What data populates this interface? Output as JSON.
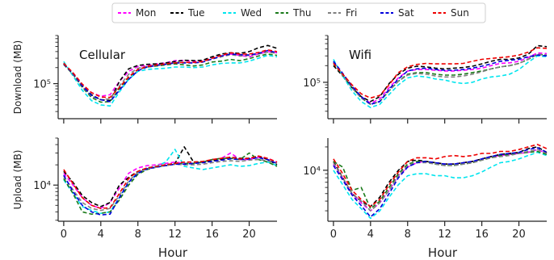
{
  "chart_data": {
    "type": "line",
    "legend_position": "top-center",
    "x": [
      0,
      1,
      2,
      3,
      4,
      5,
      6,
      7,
      8,
      9,
      10,
      11,
      12,
      13,
      14,
      15,
      16,
      17,
      18,
      19,
      20,
      21,
      22,
      23
    ],
    "xticks": [
      0,
      4,
      8,
      12,
      16,
      20
    ],
    "xlabel": "Hour",
    "series_styles": [
      {
        "name": "Mon",
        "color": "#ff00ff"
      },
      {
        "name": "Tue",
        "color": "#000000"
      },
      {
        "name": "Wed",
        "color": "#00e5ee"
      },
      {
        "name": "Thu",
        "color": "#1a7a1a"
      },
      {
        "name": "Fri",
        "color": "#808080"
      },
      {
        "name": "Sat",
        "color": "#0000dd"
      },
      {
        "name": "Sun",
        "color": "#ee0000"
      }
    ],
    "panels": [
      {
        "id": "cell-download",
        "title": "Cellular",
        "ylabel": "Download (MB)",
        "yscale": "log",
        "ylim": [
          22000,
          800000
        ],
        "yticks": [
          {
            "value": 100000,
            "label": "10⁵"
          }
        ],
        "series": [
          {
            "name": "Mon",
            "values": [
              240000,
              155000,
              95000,
              68000,
              58000,
              62000,
              110000,
              170000,
              210000,
              220000,
              235000,
              245000,
              270000,
              270000,
              265000,
              265000,
              300000,
              340000,
              360000,
              340000,
              320000,
              360000,
              400000,
              380000
            ]
          },
          {
            "name": "Tue",
            "values": [
              230000,
              150000,
              90000,
              62000,
              50000,
              48000,
              110000,
              190000,
              220000,
              230000,
              235000,
              245000,
              260000,
              275000,
              270000,
              275000,
              320000,
              360000,
              380000,
              370000,
              400000,
              470000,
              520000,
              460000
            ]
          },
          {
            "name": "Wed",
            "values": [
              260000,
              140000,
              75000,
              48000,
              40000,
              38000,
              70000,
              120000,
              170000,
              185000,
              190000,
              195000,
              205000,
              205000,
              200000,
              205000,
              225000,
              240000,
              245000,
              245000,
              265000,
              300000,
              340000,
              320000
            ]
          },
          {
            "name": "Thu",
            "values": [
              235000,
              150000,
              85000,
              55000,
              45000,
              46000,
              80000,
              130000,
              185000,
              205000,
              215000,
              225000,
              235000,
              225000,
              215000,
              225000,
              255000,
              265000,
              285000,
              270000,
              295000,
              330000,
              360000,
              340000
            ]
          },
          {
            "name": "Fri",
            "values": [
              245000,
              150000,
              88000,
              58000,
              50000,
              52000,
              90000,
              150000,
              195000,
              210000,
              225000,
              235000,
              250000,
              250000,
              245000,
              255000,
              290000,
              320000,
              350000,
              330000,
              340000,
              360000,
              390000,
              370000
            ]
          },
          {
            "name": "Sat",
            "values": [
              235000,
              155000,
              90000,
              60000,
              50000,
              46000,
              75000,
              120000,
              175000,
              205000,
              220000,
              230000,
              245000,
              245000,
              245000,
              255000,
              290000,
              330000,
              360000,
              350000,
              345000,
              370000,
              420000,
              380000
            ]
          },
          {
            "name": "Sun",
            "values": [
              240000,
              160000,
              98000,
              68000,
              56000,
              55000,
              85000,
              135000,
              185000,
              210000,
              225000,
              235000,
              245000,
              250000,
              250000,
              260000,
              300000,
              340000,
              380000,
              360000,
              360000,
              385000,
              430000,
              400000
            ]
          }
        ]
      },
      {
        "id": "wifi-download",
        "title": "Wifi",
        "ylabel": "",
        "yscale": "log",
        "ylim": [
          22000,
          700000
        ],
        "yticks": [
          {
            "value": 100000,
            "label": "10⁵"
          }
        ],
        "series": [
          {
            "name": "Mon",
            "values": [
              230000,
              140000,
              85000,
              55000,
              42000,
              50000,
              80000,
              120000,
              160000,
              170000,
              170000,
              165000,
              160000,
              160000,
              165000,
              170000,
              180000,
              200000,
              220000,
              225000,
              240000,
              280000,
              340000,
              330000
            ]
          },
          {
            "name": "Tue",
            "values": [
              200000,
              130000,
              80000,
              55000,
              45000,
              55000,
              95000,
              140000,
              180000,
              195000,
              190000,
              180000,
              175000,
              180000,
              185000,
              195000,
              215000,
              240000,
              260000,
              260000,
              275000,
              320000,
              460000,
              440000
            ]
          },
          {
            "name": "Wed",
            "values": [
              260000,
              130000,
              70000,
              45000,
              35000,
              40000,
              60000,
              90000,
              120000,
              130000,
              125000,
              115000,
              110000,
              100000,
              95000,
              100000,
              115000,
              125000,
              130000,
              140000,
              170000,
              230000,
              300000,
              290000
            ]
          },
          {
            "name": "Thu",
            "values": [
              220000,
              135000,
              80000,
              52000,
              40000,
              45000,
              70000,
              105000,
              140000,
              150000,
              150000,
              140000,
              135000,
              135000,
              140000,
              150000,
              160000,
              175000,
              190000,
              200000,
              220000,
              260000,
              320000,
              310000
            ]
          },
          {
            "name": "Fri",
            "values": [
              230000,
              135000,
              80000,
              52000,
              40000,
              45000,
              70000,
              105000,
              135000,
              145000,
              140000,
              130000,
              125000,
              125000,
              130000,
              140000,
              155000,
              175000,
              190000,
              200000,
              220000,
              260000,
              320000,
              310000
            ]
          },
          {
            "name": "Sat",
            "values": [
              240000,
              145000,
              85000,
              55000,
              40000,
              45000,
              75000,
              115000,
              160000,
              175000,
              180000,
              170000,
              165000,
              165000,
              170000,
              180000,
              195000,
              215000,
              240000,
              250000,
              260000,
              290000,
              310000,
              300000
            ]
          },
          {
            "name": "Sun",
            "values": [
              220000,
              140000,
              90000,
              62000,
              52000,
              58000,
              90000,
              150000,
              190000,
              210000,
              220000,
              215000,
              215000,
              215000,
              220000,
              240000,
              260000,
              270000,
              280000,
              290000,
              310000,
              350000,
              420000,
              410000
            ]
          }
        ]
      },
      {
        "id": "cell-upload",
        "title": "",
        "ylabel": "Upload (MB)",
        "yscale": "log",
        "ylim": [
          2900,
          50000
        ],
        "yticks": [
          {
            "value": 10000,
            "label": "10⁴"
          }
        ],
        "series": [
          {
            "name": "Mon",
            "values": [
              15000,
              10000,
              6500,
              5000,
              4500,
              5500,
              9000,
              15000,
              18000,
              19500,
              20000,
              21000,
              22000,
              21000,
              21000,
              22000,
              24000,
              25000,
              30000,
              24000,
              24000,
              26000,
              25000,
              22000
            ]
          },
          {
            "name": "Tue",
            "values": [
              16000,
              11000,
              7000,
              5500,
              4800,
              5500,
              10000,
              13000,
              16000,
              18000,
              19000,
              20000,
              21000,
              37000,
              22000,
              22000,
              23000,
              24000,
              26000,
              25000,
              25000,
              27000,
              24000,
              20000
            ]
          },
          {
            "name": "Wed",
            "values": [
              12000,
              7500,
              4800,
              4200,
              3800,
              4000,
              6500,
              11000,
              15500,
              18000,
              19000,
              22000,
              34000,
              19000,
              18000,
              17000,
              18000,
              19000,
              20000,
              19000,
              19500,
              21000,
              22000,
              19500
            ]
          },
          {
            "name": "Thu",
            "values": [
              12500,
              7500,
              4000,
              3700,
              3800,
              4000,
              6000,
              10000,
              14500,
              17000,
              18500,
              19500,
              20500,
              21000,
              21000,
              22000,
              24000,
              25000,
              25000,
              24000,
              30000,
              24000,
              22000,
              19000
            ]
          },
          {
            "name": "Fri",
            "values": [
              13500,
              8500,
              5500,
              4500,
              4200,
              4500,
              7000,
              11500,
              15500,
              17500,
              18500,
              19500,
              20500,
              20000,
              20000,
              20500,
              21500,
              22500,
              23000,
              22500,
              23500,
              24000,
              23000,
              21000
            ]
          },
          {
            "name": "Sat",
            "values": [
              14000,
              8000,
              5000,
              4000,
              3600,
              3700,
              6500,
              11000,
              15000,
              17500,
              18500,
              19500,
              20500,
              20500,
              21000,
              21500,
              22500,
              23500,
              24500,
              24000,
              24500,
              25500,
              24000,
              21000
            ]
          },
          {
            "name": "Sun",
            "values": [
              17000,
              10500,
              6500,
              5000,
              4500,
              4600,
              7500,
              12500,
              16000,
              18000,
              19000,
              20000,
              21000,
              22000,
              22000,
              22500,
              24000,
              25000,
              26000,
              24500,
              25000,
              27000,
              25000,
              22000
            ]
          }
        ]
      },
      {
        "id": "wifi-upload",
        "title": "",
        "ylabel": "",
        "yscale": "log",
        "ylim": [
          2200,
          26000
        ],
        "yticks": [
          {
            "value": 10000,
            "label": "10⁴"
          }
        ],
        "series": [
          {
            "name": "Mon",
            "values": [
              12000,
              8000,
              5000,
              3800,
              3000,
              3800,
              5500,
              8500,
              11000,
              12500,
              13000,
              12500,
              12000,
              12000,
              12500,
              13000,
              14000,
              15000,
              15500,
              16000,
              16500,
              17000,
              18500,
              16500
            ]
          },
          {
            "name": "Tue",
            "values": [
              13000,
              8000,
              5000,
              4000,
              3400,
              4500,
              7000,
              10000,
              13000,
              13500,
              13000,
              12500,
              12000,
              12000,
              12500,
              13000,
              14000,
              15000,
              16000,
              16500,
              17000,
              19000,
              20000,
              17000
            ]
          },
          {
            "name": "Wed",
            "values": [
              10000,
              6500,
              4200,
              3200,
              2400,
              3000,
              4500,
              6500,
              8500,
              9000,
              9000,
              8500,
              8500,
              8000,
              8000,
              8500,
              9500,
              11000,
              12500,
              13000,
              14000,
              15500,
              17000,
              15500
            ]
          },
          {
            "name": "Thu",
            "values": [
              13000,
              11000,
              5500,
              6000,
              3200,
              4000,
              6000,
              9000,
              12000,
              13000,
              13000,
              12000,
              11500,
              11500,
              12000,
              12500,
              13500,
              14500,
              15500,
              16000,
              16500,
              17000,
              17500,
              16000
            ]
          },
          {
            "name": "Fri",
            "values": [
              12500,
              8000,
              5000,
              4000,
              3000,
              3800,
              5500,
              8500,
              11500,
              12500,
              12500,
              12000,
              11500,
              11500,
              12000,
              12500,
              13500,
              14500,
              15000,
              15500,
              16500,
              17500,
              18500,
              16500
            ]
          },
          {
            "name": "Sat",
            "values": [
              11500,
              7500,
              4800,
              3500,
              2500,
              3200,
              5000,
              8000,
              11000,
              12500,
              13000,
              12500,
              12000,
              12000,
              12500,
              13000,
              14000,
              15000,
              16000,
              16500,
              17000,
              18500,
              19500,
              17000
            ]
          },
          {
            "name": "Sun",
            "values": [
              14000,
              9000,
              5500,
              4200,
              3400,
              4200,
              6500,
              9500,
              13000,
              14500,
              14500,
              14000,
              15000,
              15500,
              15000,
              15500,
              16500,
              16500,
              17500,
              17500,
              18500,
              20000,
              21500,
              19000
            ]
          }
        ]
      }
    ]
  }
}
